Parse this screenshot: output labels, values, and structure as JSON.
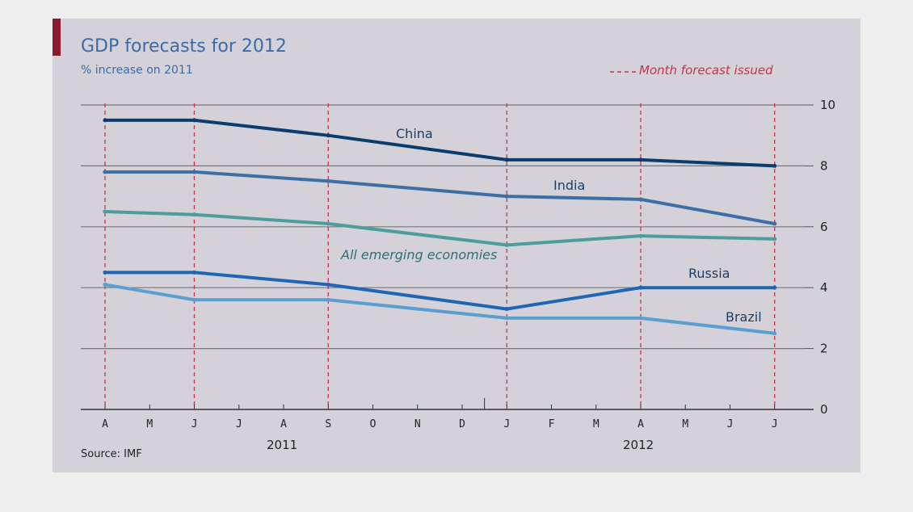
{
  "chart_data": {
    "type": "line",
    "title": "GDP forecasts for 2012",
    "subtitle": "% increase on 2011",
    "legend": "Month forecast issued",
    "source": "Source: IMF",
    "x_tick_labels": [
      "A",
      "M",
      "J",
      "J",
      "A",
      "S",
      "O",
      "N",
      "D",
      "J",
      "F",
      "M",
      "A",
      "M",
      "J",
      "J"
    ],
    "year_labels": [
      "2011",
      "2012"
    ],
    "forecast_months": [
      "2011-04",
      "2011-06",
      "2011-09",
      "2012-01",
      "2012-04",
      "2012-07"
    ],
    "y_ticks": [
      0,
      2,
      4,
      6,
      8,
      10
    ],
    "ylim": [
      0,
      10
    ],
    "grid": true,
    "series": [
      {
        "name": "China",
        "color": "#0b3c6e",
        "values": [
          9.5,
          9.5,
          9.0,
          8.2,
          8.2,
          8.0
        ]
      },
      {
        "name": "India",
        "color": "#3d6fa6",
        "values": [
          7.8,
          7.8,
          7.5,
          7.0,
          6.9,
          6.1
        ]
      },
      {
        "name": "All emerging economies",
        "color": "#4b9d9e",
        "values": [
          6.5,
          6.4,
          6.1,
          5.4,
          5.7,
          5.6
        ]
      },
      {
        "name": "Russia",
        "color": "#1e66b3",
        "values": [
          4.5,
          4.5,
          4.1,
          3.3,
          4.0,
          4.0
        ]
      },
      {
        "name": "Brazil",
        "color": "#5a9fd0",
        "values": [
          4.1,
          3.6,
          3.6,
          3.0,
          3.0,
          2.5
        ]
      }
    ]
  }
}
